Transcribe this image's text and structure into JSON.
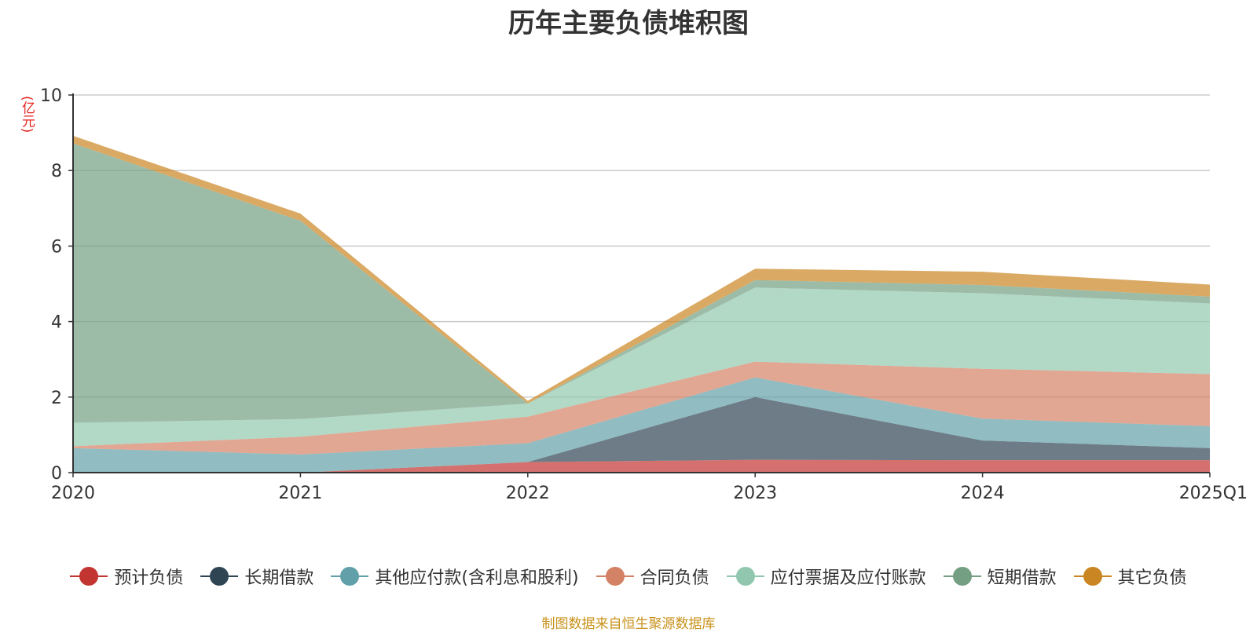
{
  "chart_data": {
    "type": "area",
    "stacked": true,
    "title": "历年主要负债堆积图",
    "unit_label": "(亿元)",
    "categories": [
      "2020",
      "2021",
      "2022",
      "2023",
      "2024",
      "2025Q1"
    ],
    "ylim": [
      0,
      10
    ],
    "yticks": [
      "0",
      "2",
      "4",
      "6",
      "8",
      "10"
    ],
    "grid": true,
    "legend_position": "bottom",
    "series": [
      {
        "name": "预计负债",
        "color": "#c23531",
        "values": [
          0.0,
          0.0,
          0.28,
          0.34,
          0.33,
          0.33
        ]
      },
      {
        "name": "长期借款",
        "color": "#2f4554",
        "values": [
          0.0,
          0.0,
          0.0,
          1.66,
          0.52,
          0.32
        ]
      },
      {
        "name": "其他应付款(含利息和股利)",
        "color": "#61a0a8",
        "values": [
          0.65,
          0.48,
          0.5,
          0.52,
          0.58,
          0.58
        ]
      },
      {
        "name": "合同负债",
        "color": "#d48265",
        "values": [
          0.05,
          0.47,
          0.7,
          0.42,
          1.32,
          1.38
        ]
      },
      {
        "name": "应付票据及应付账款",
        "color": "#91c7ae",
        "values": [
          0.62,
          0.47,
          0.35,
          1.96,
          2.0,
          1.87
        ]
      },
      {
        "name": "短期借款",
        "color": "#749f83",
        "values": [
          7.4,
          5.25,
          0.0,
          0.2,
          0.22,
          0.18
        ]
      },
      {
        "name": "其它负债",
        "color": "#ca8622",
        "values": [
          0.2,
          0.19,
          0.07,
          0.3,
          0.35,
          0.32
        ]
      }
    ]
  },
  "source_text": "制图数据来自恒生聚源数据库"
}
